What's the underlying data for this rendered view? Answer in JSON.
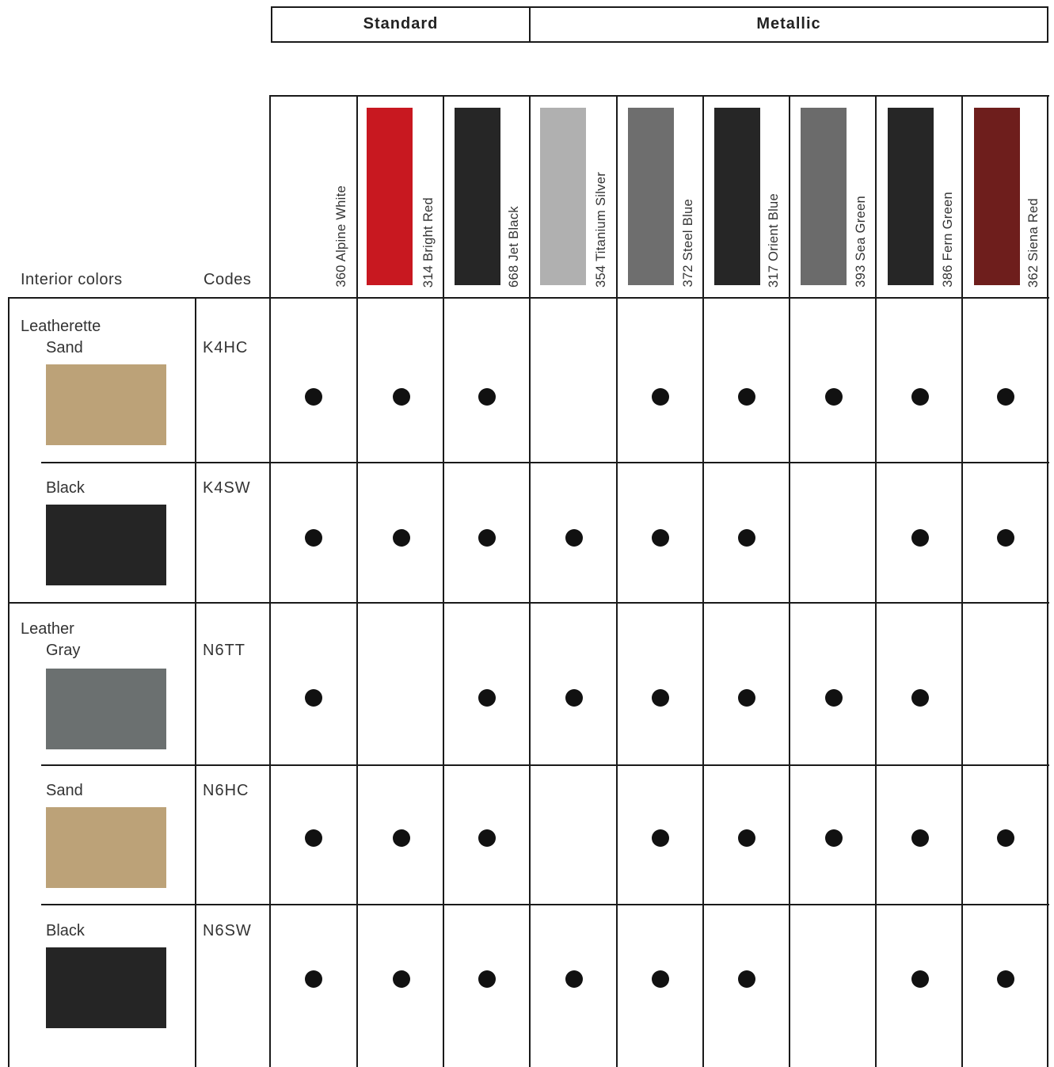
{
  "header": {
    "standard_label": "Standard",
    "metallic_label": "Metallic",
    "interior_colors_label": "Interior colors",
    "codes_label": "Codes"
  },
  "exterior_colors": [
    {
      "name": "360 Alpine White",
      "swatch": "#ffffff"
    },
    {
      "name": "314 Bright Red",
      "swatch": "#c81820"
    },
    {
      "name": "668 Jet Black",
      "swatch": "#262626"
    },
    {
      "name": "354 Titanium Silver",
      "swatch": "#b0b0b0"
    },
    {
      "name": "372 Steel Blue",
      "swatch": "#6e6e6e"
    },
    {
      "name": "317 Orient Blue",
      "swatch": "#262626"
    },
    {
      "name": "393 Sea Green",
      "swatch": "#6b6b6b"
    },
    {
      "name": "386 Fern Green",
      "swatch": "#262626"
    },
    {
      "name": "362 Siena Red",
      "swatch": "#6e1e1c"
    }
  ],
  "interior_groups": [
    {
      "label": "Leatherette"
    },
    {
      "label": "Leather"
    }
  ],
  "interior_rows": [
    {
      "name": "Sand",
      "code": "K4HC",
      "swatch": "#bca278",
      "availability": [
        1,
        1,
        1,
        0,
        1,
        1,
        1,
        1,
        1
      ]
    },
    {
      "name": "Black",
      "code": "K4SW",
      "swatch": "#252525",
      "availability": [
        1,
        1,
        1,
        1,
        1,
        1,
        0,
        1,
        1
      ]
    },
    {
      "name": "Gray",
      "code": "N6TT",
      "swatch": "#6b7070",
      "availability": [
        1,
        0,
        1,
        1,
        1,
        1,
        1,
        1,
        0
      ]
    },
    {
      "name": "Sand",
      "code": "N6HC",
      "swatch": "#bca278",
      "availability": [
        1,
        1,
        1,
        0,
        1,
        1,
        1,
        1,
        1
      ]
    },
    {
      "name": "Black",
      "code": "N6SW",
      "swatch": "#252525",
      "availability": [
        1,
        1,
        1,
        1,
        1,
        1,
        0,
        1,
        1
      ]
    }
  ]
}
